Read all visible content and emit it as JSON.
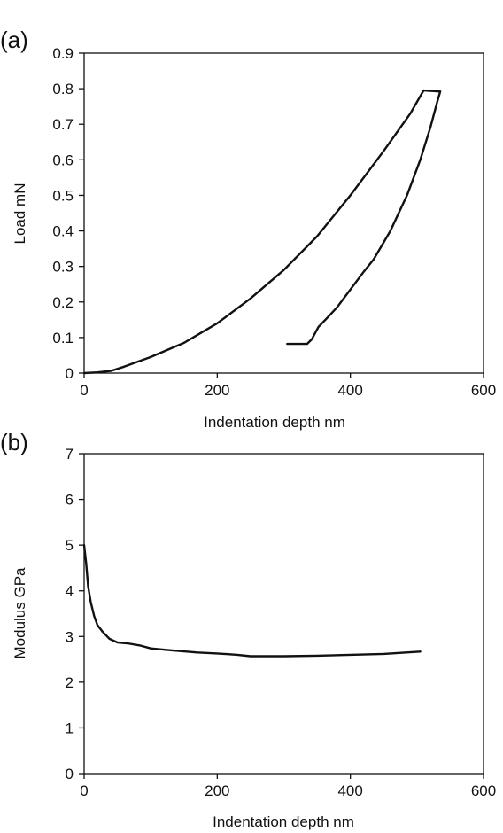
{
  "chart_data": [
    {
      "panel_label": "(a)",
      "type": "line",
      "xlabel": "Indentation depth nm",
      "ylabel": "Load mN",
      "xlim": [
        0,
        600
      ],
      "ylim": [
        0,
        0.9
      ],
      "xticks": [
        "0",
        "200",
        "400",
        "600"
      ],
      "yticks": [
        "0",
        "0.1",
        "0.2",
        "0.3",
        "0.4",
        "0.5",
        "0.6",
        "0.7",
        "0.8",
        "0.9"
      ],
      "grid": false,
      "series": [
        {
          "segment": "loading",
          "color": "#111111",
          "points": [
            [
              0,
              0.0
            ],
            [
              20,
              0.002
            ],
            [
              40,
              0.006
            ],
            [
              60,
              0.018
            ],
            [
              100,
              0.045
            ],
            [
              150,
              0.085
            ],
            [
              200,
              0.14
            ],
            [
              250,
              0.21
            ],
            [
              300,
              0.29
            ],
            [
              350,
              0.385
            ],
            [
              400,
              0.5
            ],
            [
              450,
              0.625
            ],
            [
              490,
              0.73
            ],
            [
              510,
              0.795
            ]
          ]
        },
        {
          "segment": "hold",
          "color": "#111111",
          "points": [
            [
              510,
              0.795
            ],
            [
              535,
              0.792
            ]
          ]
        },
        {
          "segment": "unloading",
          "color": "#111111",
          "points": [
            [
              535,
              0.792
            ],
            [
              530,
              0.76
            ],
            [
              520,
              0.69
            ],
            [
              505,
              0.6
            ],
            [
              485,
              0.5
            ],
            [
              460,
              0.4
            ],
            [
              435,
              0.32
            ],
            [
              420,
              0.285
            ],
            [
              400,
              0.235
            ],
            [
              380,
              0.185
            ],
            [
              365,
              0.155
            ],
            [
              352,
              0.13
            ],
            [
              342,
              0.095
            ],
            [
              335,
              0.082
            ],
            [
              305,
              0.082
            ]
          ]
        }
      ]
    },
    {
      "panel_label": "(b)",
      "type": "line",
      "xlabel": "Indentation depth nm",
      "ylabel": "Modulus GPa",
      "xlim": [
        0,
        600
      ],
      "ylim": [
        0,
        7
      ],
      "xticks": [
        "0",
        "200",
        "400",
        "600"
      ],
      "yticks": [
        "0",
        "1",
        "2",
        "3",
        "4",
        "5",
        "6",
        "7"
      ],
      "grid": false,
      "series": [
        {
          "color": "#111111",
          "points": [
            [
              0,
              5.0
            ],
            [
              3,
              4.6
            ],
            [
              6,
              4.1
            ],
            [
              10,
              3.75
            ],
            [
              15,
              3.45
            ],
            [
              20,
              3.25
            ],
            [
              28,
              3.1
            ],
            [
              38,
              2.95
            ],
            [
              50,
              2.87
            ],
            [
              65,
              2.85
            ],
            [
              85,
              2.8
            ],
            [
              100,
              2.74
            ],
            [
              130,
              2.7
            ],
            [
              170,
              2.65
            ],
            [
              200,
              2.63
            ],
            [
              230,
              2.6
            ],
            [
              250,
              2.57
            ],
            [
              300,
              2.57
            ],
            [
              350,
              2.58
            ],
            [
              400,
              2.6
            ],
            [
              450,
              2.62
            ],
            [
              505,
              2.67
            ]
          ]
        }
      ]
    }
  ]
}
